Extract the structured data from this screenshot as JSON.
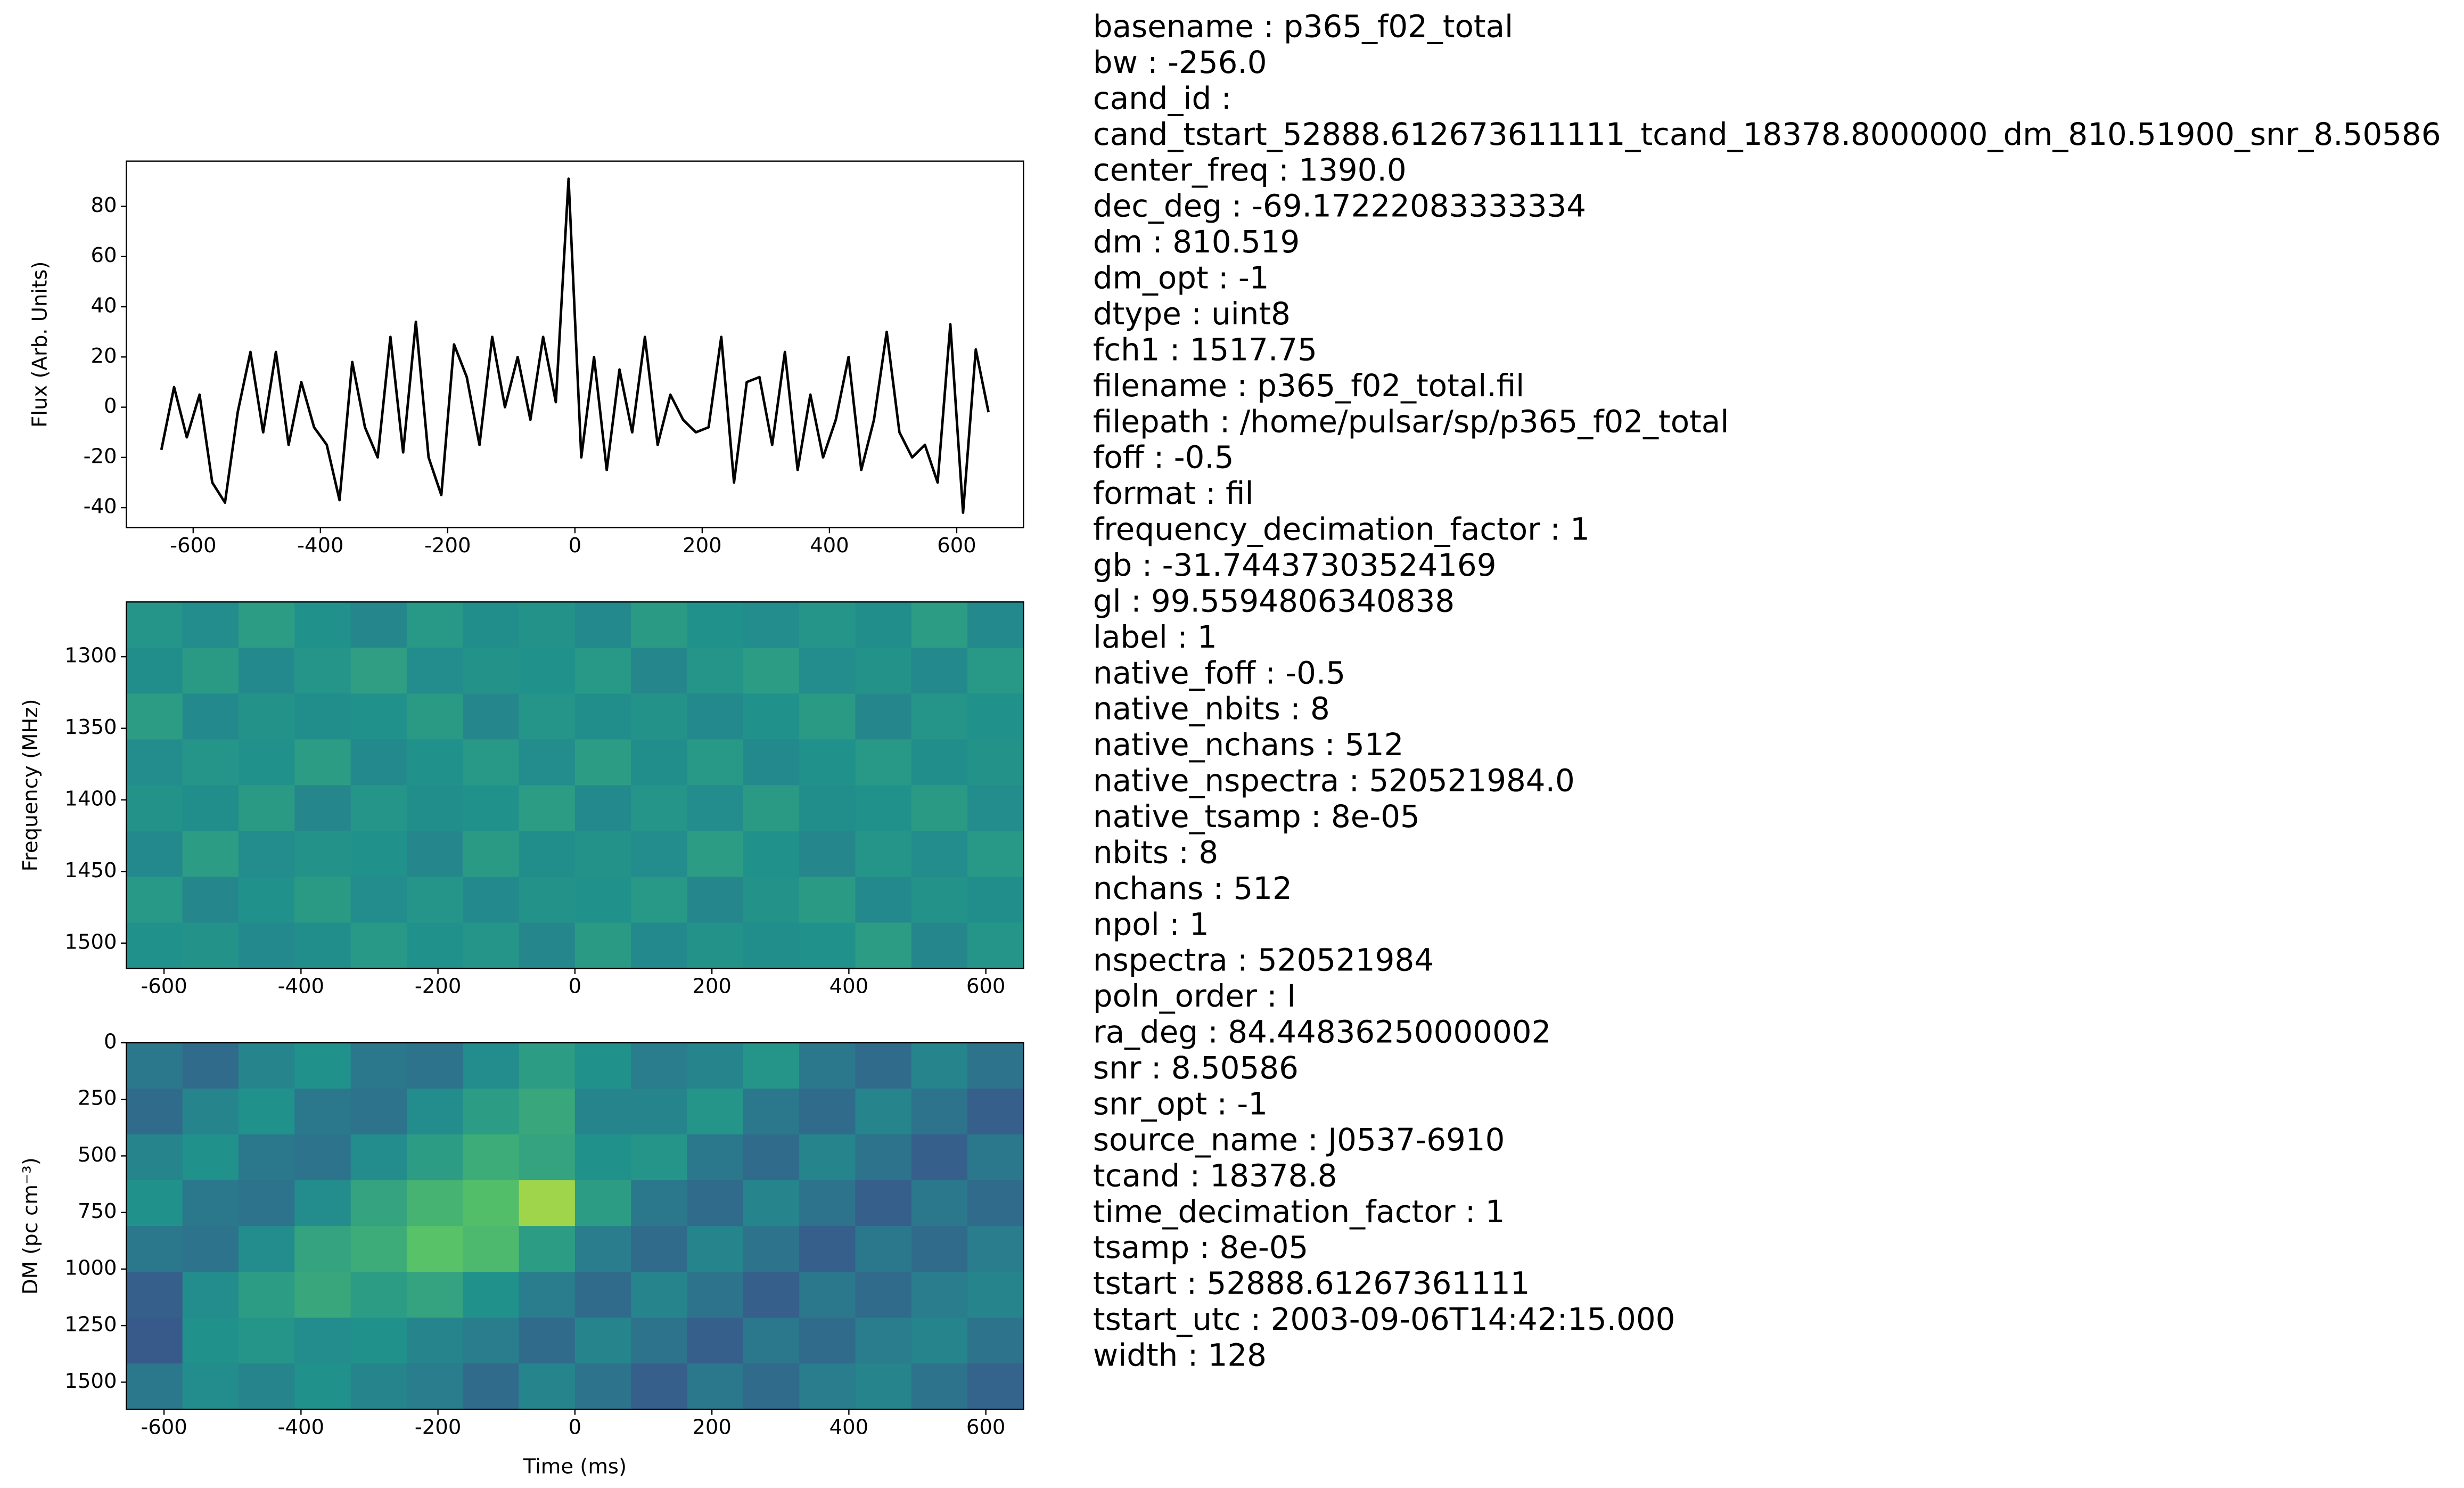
{
  "chart_data": [
    {
      "type": "line",
      "ylabel": "Flux (Arb. Units)",
      "color": "#000000",
      "x": [
        -650,
        -630,
        -610,
        -590,
        -570,
        -550,
        -530,
        -510,
        -490,
        -470,
        -450,
        -430,
        -410,
        -390,
        -370,
        -350,
        -330,
        -310,
        -290,
        -270,
        -250,
        -230,
        -210,
        -190,
        -170,
        -150,
        -130,
        -110,
        -90,
        -70,
        -50,
        -30,
        -10,
        10,
        30,
        50,
        70,
        90,
        110,
        130,
        150,
        170,
        190,
        210,
        230,
        250,
        270,
        290,
        310,
        330,
        350,
        370,
        390,
        410,
        430,
        450,
        470,
        490,
        510,
        530,
        550,
        570,
        590,
        610,
        630,
        650
      ],
      "values": [
        -17,
        8,
        -12,
        5,
        -30,
        -38,
        -2,
        22,
        -10,
        22,
        -15,
        10,
        -8,
        -15,
        -37,
        18,
        -8,
        -20,
        28,
        -18,
        34,
        -20,
        -35,
        25,
        12,
        -15,
        28,
        0,
        20,
        -5,
        28,
        2,
        91,
        -20,
        20,
        -25,
        15,
        -10,
        28,
        -15,
        5,
        -5,
        -10,
        -8,
        28,
        -30,
        10,
        12,
        -15,
        22,
        -25,
        5,
        -20,
        -5,
        20,
        -25,
        -5,
        30,
        -10,
        -20,
        -15,
        -30,
        33,
        -42,
        23,
        -2
      ],
      "xlim": [
        -705,
        705
      ],
      "ylim": [
        -48,
        98
      ],
      "xticks": [
        -600,
        -400,
        -200,
        0,
        200,
        400,
        600
      ],
      "yticks": [
        -40,
        -20,
        0,
        20,
        40,
        60,
        80
      ]
    },
    {
      "type": "heatmap",
      "ylabel": "Frequency (MHz)",
      "colormap": "viridis",
      "xlim": [
        -655,
        655
      ],
      "ylim": [
        1517.75,
        1261.75
      ],
      "xticks": [
        -600,
        -400,
        -200,
        0,
        200,
        400,
        600
      ],
      "yticks": [
        1300,
        1350,
        1400,
        1450,
        1500
      ],
      "z": [
        [
          0.52,
          0.48,
          0.55,
          0.5,
          0.46,
          0.53,
          0.49,
          0.51,
          0.47,
          0.54,
          0.5,
          0.48,
          0.52,
          0.49,
          0.55,
          0.47
        ],
        [
          0.49,
          0.54,
          0.47,
          0.52,
          0.56,
          0.48,
          0.51,
          0.5,
          0.53,
          0.46,
          0.52,
          0.55,
          0.48,
          0.51,
          0.47,
          0.53
        ],
        [
          0.55,
          0.47,
          0.51,
          0.49,
          0.5,
          0.54,
          0.46,
          0.52,
          0.49,
          0.51,
          0.47,
          0.5,
          0.54,
          0.46,
          0.52,
          0.5
        ],
        [
          0.48,
          0.52,
          0.5,
          0.55,
          0.47,
          0.5,
          0.53,
          0.48,
          0.55,
          0.49,
          0.53,
          0.47,
          0.5,
          0.53,
          0.49,
          0.51
        ],
        [
          0.51,
          0.49,
          0.54,
          0.46,
          0.52,
          0.49,
          0.5,
          0.55,
          0.47,
          0.52,
          0.48,
          0.54,
          0.49,
          0.5,
          0.54,
          0.48
        ],
        [
          0.47,
          0.55,
          0.48,
          0.51,
          0.5,
          0.46,
          0.54,
          0.49,
          0.51,
          0.48,
          0.55,
          0.5,
          0.46,
          0.52,
          0.48,
          0.53
        ],
        [
          0.53,
          0.46,
          0.5,
          0.54,
          0.48,
          0.52,
          0.47,
          0.51,
          0.5,
          0.53,
          0.46,
          0.51,
          0.54,
          0.47,
          0.51,
          0.49
        ],
        [
          0.5,
          0.51,
          0.47,
          0.49,
          0.53,
          0.5,
          0.52,
          0.46,
          0.54,
          0.47,
          0.51,
          0.49,
          0.5,
          0.55,
          0.46,
          0.52
        ]
      ]
    },
    {
      "type": "heatmap",
      "ylabel": "DM (pc cm⁻³)",
      "xlabel": "Time (ms)",
      "colormap": "viridis",
      "xlim": [
        -655,
        655
      ],
      "ylim": [
        1620,
        0
      ],
      "xticks": [
        -600,
        -400,
        -200,
        0,
        200,
        400,
        600
      ],
      "yticks": [
        0,
        250,
        500,
        750,
        1000,
        1250,
        1500
      ],
      "z": [
        [
          0.4,
          0.35,
          0.45,
          0.5,
          0.4,
          0.38,
          0.48,
          0.55,
          0.5,
          0.42,
          0.45,
          0.52,
          0.4,
          0.35,
          0.45,
          0.38
        ],
        [
          0.35,
          0.45,
          0.5,
          0.4,
          0.38,
          0.48,
          0.55,
          0.6,
          0.45,
          0.45,
          0.52,
          0.4,
          0.35,
          0.45,
          0.38,
          0.3
        ],
        [
          0.45,
          0.5,
          0.4,
          0.38,
          0.48,
          0.55,
          0.62,
          0.58,
          0.5,
          0.52,
          0.4,
          0.35,
          0.45,
          0.38,
          0.3,
          0.4
        ],
        [
          0.5,
          0.4,
          0.38,
          0.48,
          0.58,
          0.65,
          0.7,
          0.85,
          0.55,
          0.4,
          0.35,
          0.45,
          0.38,
          0.3,
          0.4,
          0.35
        ],
        [
          0.4,
          0.38,
          0.48,
          0.58,
          0.62,
          0.72,
          0.68,
          0.55,
          0.42,
          0.35,
          0.45,
          0.38,
          0.3,
          0.4,
          0.35,
          0.42
        ],
        [
          0.3,
          0.48,
          0.55,
          0.6,
          0.55,
          0.58,
          0.5,
          0.42,
          0.35,
          0.45,
          0.38,
          0.3,
          0.4,
          0.35,
          0.42,
          0.45
        ],
        [
          0.28,
          0.5,
          0.52,
          0.48,
          0.5,
          0.45,
          0.42,
          0.35,
          0.45,
          0.38,
          0.3,
          0.4,
          0.35,
          0.42,
          0.45,
          0.38
        ],
        [
          0.4,
          0.48,
          0.45,
          0.5,
          0.45,
          0.42,
          0.35,
          0.45,
          0.38,
          0.3,
          0.4,
          0.35,
          0.42,
          0.45,
          0.38,
          0.32
        ]
      ]
    }
  ],
  "lines": [
    "basename : p365_f02_total",
    "bw : -256.0",
    "cand_id :",
    "cand_tstart_52888.612673611111_tcand_18378.8000000_dm_810.51900_snr_8.50586",
    "center_freq : 1390.0",
    "dec_deg : -69.17222083333334",
    "dm : 810.519",
    "dm_opt : -1",
    "dtype : uint8",
    "fch1 : 1517.75",
    "filename : p365_f02_total.fil",
    "filepath : /home/pulsar/sp/p365_f02_total",
    "foff : -0.5",
    "format : fil",
    "frequency_decimation_factor : 1",
    "gb : -31.74437303524169",
    "gl : 99.5594806340838",
    "label : 1",
    "native_foff : -0.5",
    "native_nbits : 8",
    "native_nchans : 512",
    "native_nspectra : 520521984.0",
    "native_tsamp : 8e-05",
    "nbits : 8",
    "nchans : 512",
    "npol : 1",
    "nspectra : 520521984",
    "poln_order : I",
    "ra_deg : 84.44836250000002",
    "snr : 8.50586",
    "snr_opt : -1",
    "source_name : J0537-6910",
    "tcand : 18378.8",
    "time_decimation_factor : 1",
    "tsamp : 8e-05",
    "tstart : 52888.61267361111",
    "tstart_utc : 2003-09-06T14:42:15.000",
    "width : 128"
  ]
}
